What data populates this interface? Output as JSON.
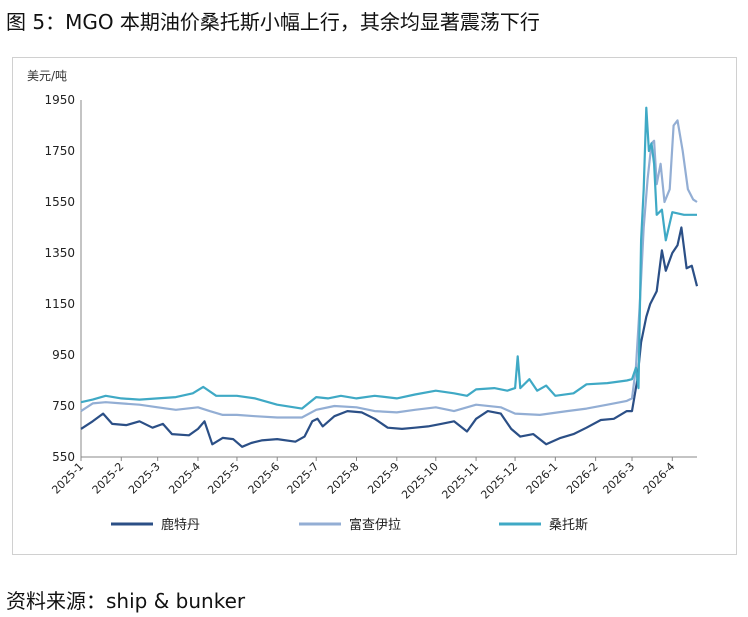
{
  "figure": {
    "title": "图 5：MGO 本期油价桑托斯小幅上行，其余均显著震荡下行",
    "source": "资料来源：ship & bunker"
  },
  "chart_data": {
    "type": "line",
    "unit_label": "美元/吨",
    "ylim": [
      550,
      1950
    ],
    "yticks": [
      550,
      750,
      950,
      1150,
      1350,
      1550,
      1750,
      1950
    ],
    "xlim": [
      "2025-01-01",
      "2026-04-20"
    ],
    "xticks": [
      "2025-1",
      "2025-2",
      "2025-3",
      "2025-4",
      "2025-5",
      "2025-6",
      "2025-7",
      "2025-8",
      "2025-9",
      "2025-10",
      "2025-11",
      "2025-12",
      "2026-1",
      "2026-2",
      "2026-3",
      "2026-4"
    ],
    "grid": false,
    "legend_position": "bottom",
    "series": [
      {
        "name": "鹿特丹",
        "color": "#2b4f86",
        "points": [
          [
            "2025-01-01",
            660
          ],
          [
            "2025-01-10",
            690
          ],
          [
            "2025-01-18",
            720
          ],
          [
            "2025-01-25",
            680
          ],
          [
            "2025-02-05",
            675
          ],
          [
            "2025-02-15",
            690
          ],
          [
            "2025-02-25",
            665
          ],
          [
            "2025-03-05",
            680
          ],
          [
            "2025-03-12",
            640
          ],
          [
            "2025-03-25",
            635
          ],
          [
            "2025-04-01",
            660
          ],
          [
            "2025-04-06",
            690
          ],
          [
            "2025-04-12",
            600
          ],
          [
            "2025-04-20",
            625
          ],
          [
            "2025-04-28",
            620
          ],
          [
            "2025-05-05",
            590
          ],
          [
            "2025-05-12",
            605
          ],
          [
            "2025-05-20",
            615
          ],
          [
            "2025-06-01",
            620
          ],
          [
            "2025-06-15",
            610
          ],
          [
            "2025-06-22",
            630
          ],
          [
            "2025-06-28",
            690
          ],
          [
            "2025-07-02",
            700
          ],
          [
            "2025-07-06",
            670
          ],
          [
            "2025-07-15",
            710
          ],
          [
            "2025-07-25",
            730
          ],
          [
            "2025-08-05",
            725
          ],
          [
            "2025-08-15",
            700
          ],
          [
            "2025-08-25",
            665
          ],
          [
            "2025-09-05",
            660
          ],
          [
            "2025-09-15",
            665
          ],
          [
            "2025-09-25",
            670
          ],
          [
            "2025-10-05",
            680
          ],
          [
            "2025-10-15",
            690
          ],
          [
            "2025-10-25",
            650
          ],
          [
            "2025-11-01",
            700
          ],
          [
            "2025-11-10",
            730
          ],
          [
            "2025-11-20",
            720
          ],
          [
            "2025-11-28",
            660
          ],
          [
            "2025-12-05",
            630
          ],
          [
            "2025-12-15",
            640
          ],
          [
            "2025-12-25",
            600
          ],
          [
            "2026-01-05",
            625
          ],
          [
            "2026-01-15",
            640
          ],
          [
            "2026-01-25",
            665
          ],
          [
            "2026-02-05",
            695
          ],
          [
            "2026-02-15",
            700
          ],
          [
            "2026-02-25",
            730
          ],
          [
            "2026-03-01",
            730
          ],
          [
            "2026-03-05",
            850
          ],
          [
            "2026-03-08",
            1000
          ],
          [
            "2026-03-12",
            1100
          ],
          [
            "2026-03-15",
            1150
          ],
          [
            "2026-03-20",
            1200
          ],
          [
            "2026-03-24",
            1360
          ],
          [
            "2026-03-27",
            1280
          ],
          [
            "2026-04-01",
            1350
          ],
          [
            "2026-04-05",
            1380
          ],
          [
            "2026-04-08",
            1450
          ],
          [
            "2026-04-12",
            1290
          ],
          [
            "2026-04-16",
            1300
          ],
          [
            "2026-04-20",
            1220
          ]
        ]
      },
      {
        "name": "富查伊拉",
        "color": "#93aed4",
        "points": [
          [
            "2025-01-01",
            730
          ],
          [
            "2025-01-10",
            760
          ],
          [
            "2025-01-20",
            765
          ],
          [
            "2025-02-01",
            760
          ],
          [
            "2025-02-15",
            755
          ],
          [
            "2025-03-01",
            745
          ],
          [
            "2025-03-15",
            735
          ],
          [
            "2025-04-01",
            745
          ],
          [
            "2025-04-10",
            730
          ],
          [
            "2025-04-20",
            715
          ],
          [
            "2025-05-01",
            715
          ],
          [
            "2025-05-15",
            710
          ],
          [
            "2025-06-01",
            705
          ],
          [
            "2025-06-20",
            705
          ],
          [
            "2025-07-01",
            735
          ],
          [
            "2025-07-15",
            750
          ],
          [
            "2025-08-01",
            745
          ],
          [
            "2025-08-15",
            730
          ],
          [
            "2025-09-01",
            725
          ],
          [
            "2025-09-15",
            735
          ],
          [
            "2025-10-01",
            745
          ],
          [
            "2025-10-15",
            730
          ],
          [
            "2025-11-01",
            755
          ],
          [
            "2025-11-20",
            745
          ],
          [
            "2025-12-01",
            720
          ],
          [
            "2025-12-20",
            715
          ],
          [
            "2026-01-10",
            730
          ],
          [
            "2026-01-25",
            740
          ],
          [
            "2026-02-10",
            755
          ],
          [
            "2026-02-25",
            770
          ],
          [
            "2026-03-01",
            780
          ],
          [
            "2026-03-04",
            900
          ],
          [
            "2026-03-07",
            1150
          ],
          [
            "2026-03-10",
            1450
          ],
          [
            "2026-03-13",
            1640
          ],
          [
            "2026-03-16",
            1780
          ],
          [
            "2026-03-18",
            1790
          ],
          [
            "2026-03-20",
            1620
          ],
          [
            "2026-03-23",
            1700
          ],
          [
            "2026-03-26",
            1550
          ],
          [
            "2026-03-30",
            1600
          ],
          [
            "2026-04-02",
            1850
          ],
          [
            "2026-04-05",
            1870
          ],
          [
            "2026-04-09",
            1750
          ],
          [
            "2026-04-13",
            1600
          ],
          [
            "2026-04-17",
            1560
          ],
          [
            "2026-04-20",
            1550
          ]
        ]
      },
      {
        "name": "桑托斯",
        "color": "#3fa9c5",
        "points": [
          [
            "2025-01-01",
            765
          ],
          [
            "2025-01-10",
            775
          ],
          [
            "2025-01-20",
            790
          ],
          [
            "2025-02-01",
            780
          ],
          [
            "2025-02-15",
            775
          ],
          [
            "2025-03-01",
            780
          ],
          [
            "2025-03-15",
            785
          ],
          [
            "2025-03-28",
            800
          ],
          [
            "2025-04-05",
            825
          ],
          [
            "2025-04-15",
            790
          ],
          [
            "2025-05-01",
            790
          ],
          [
            "2025-05-15",
            780
          ],
          [
            "2025-06-01",
            755
          ],
          [
            "2025-06-20",
            740
          ],
          [
            "2025-07-01",
            785
          ],
          [
            "2025-07-10",
            780
          ],
          [
            "2025-07-20",
            790
          ],
          [
            "2025-08-01",
            780
          ],
          [
            "2025-08-15",
            790
          ],
          [
            "2025-09-01",
            780
          ],
          [
            "2025-09-15",
            795
          ],
          [
            "2025-10-01",
            810
          ],
          [
            "2025-10-15",
            800
          ],
          [
            "2025-10-25",
            790
          ],
          [
            "2025-11-01",
            815
          ],
          [
            "2025-11-15",
            820
          ],
          [
            "2025-11-25",
            810
          ],
          [
            "2025-12-01",
            820
          ],
          [
            "2025-12-03",
            945
          ],
          [
            "2025-12-05",
            820
          ],
          [
            "2025-12-12",
            855
          ],
          [
            "2025-12-18",
            810
          ],
          [
            "2025-12-25",
            830
          ],
          [
            "2026-01-01",
            790
          ],
          [
            "2026-01-15",
            800
          ],
          [
            "2026-01-25",
            835
          ],
          [
            "2026-02-10",
            840
          ],
          [
            "2026-02-25",
            850
          ],
          [
            "2026-03-01",
            855
          ],
          [
            "2026-03-04",
            900
          ],
          [
            "2026-03-06",
            820
          ],
          [
            "2026-03-08",
            1400
          ],
          [
            "2026-03-10",
            1600
          ],
          [
            "2026-03-12",
            1920
          ],
          [
            "2026-03-14",
            1750
          ],
          [
            "2026-03-16",
            1780
          ],
          [
            "2026-03-18",
            1700
          ],
          [
            "2026-03-20",
            1500
          ],
          [
            "2026-03-24",
            1520
          ],
          [
            "2026-03-27",
            1400
          ],
          [
            "2026-04-01",
            1510
          ],
          [
            "2026-04-10",
            1500
          ],
          [
            "2026-04-20",
            1500
          ]
        ]
      }
    ]
  }
}
